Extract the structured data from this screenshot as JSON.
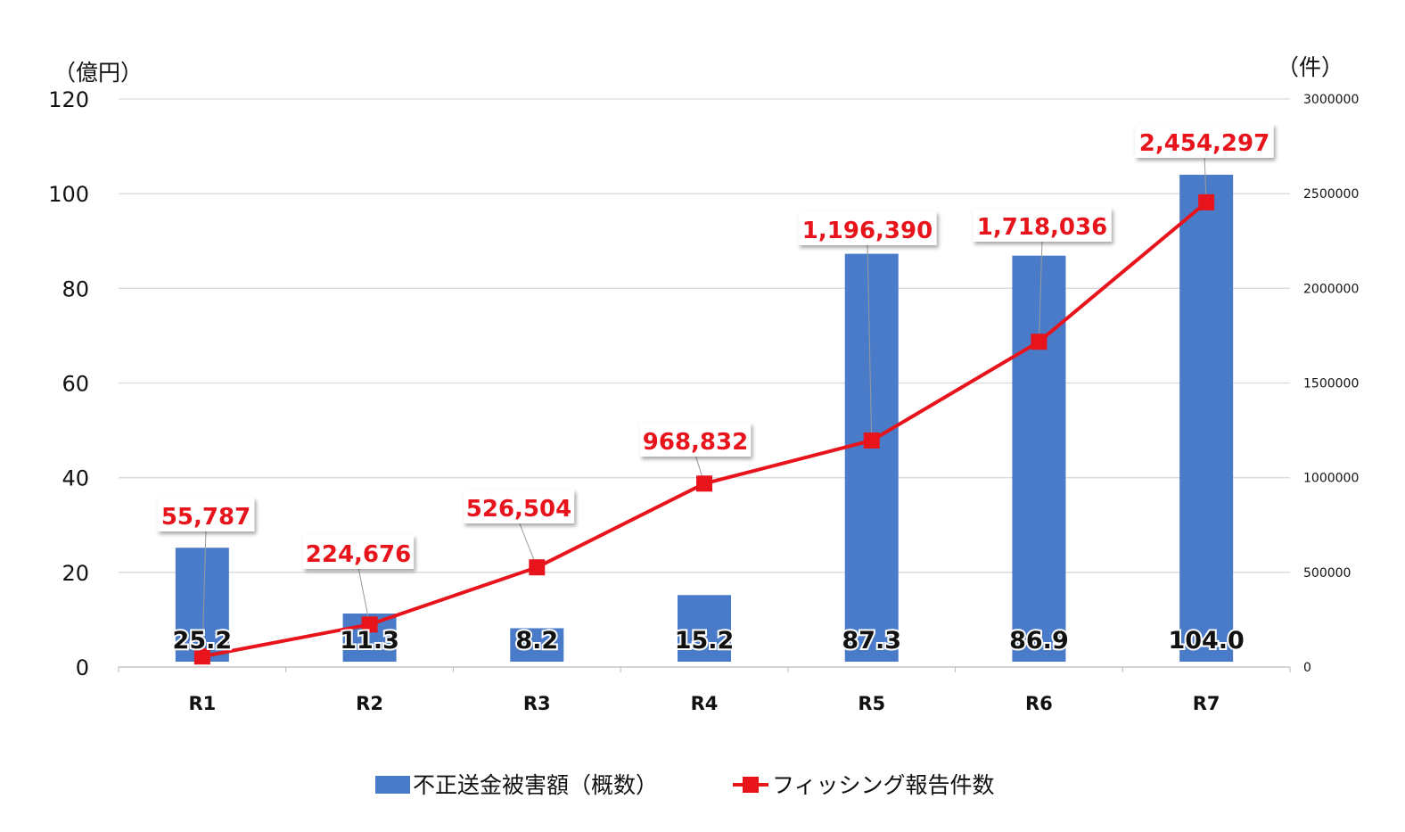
{
  "chart_data": {
    "type": "bar+line",
    "categories": [
      "R1",
      "R2",
      "R3",
      "R4",
      "R5",
      "R6",
      "R7"
    ],
    "series": [
      {
        "name": "不正送金被害額（概数）",
        "type": "bar",
        "axis": "left",
        "color": "#4a7bc8",
        "values": [
          25.2,
          11.3,
          8.2,
          15.2,
          87.3,
          86.9,
          104.0
        ],
        "labels": [
          "25.2",
          "11.3",
          "8.2",
          "15.2",
          "87.3",
          "86.9",
          "104.0"
        ]
      },
      {
        "name": "フィッシング報告件数",
        "type": "line",
        "axis": "right",
        "color": "#e8141c",
        "values": [
          55787,
          224676,
          526504,
          968832,
          1196390,
          1718036,
          2454297
        ],
        "labels": [
          "55,787",
          "224,676",
          "526,504",
          "968,832",
          "1,196,390",
          "1,718,036",
          "2,454,297"
        ]
      }
    ],
    "left_axis": {
      "unit": "（億円）",
      "ylim": [
        0,
        120
      ],
      "ticks": [
        "0",
        "20",
        "40",
        "60",
        "80",
        "100",
        "120"
      ]
    },
    "right_axis": {
      "unit": "（件）",
      "ylim": [
        0,
        3000000
      ],
      "ticks": [
        "0",
        "500000",
        "1000000",
        "1500000",
        "2000000",
        "2500000",
        "3000000"
      ]
    },
    "grid": true,
    "legend": "bottom-center"
  }
}
